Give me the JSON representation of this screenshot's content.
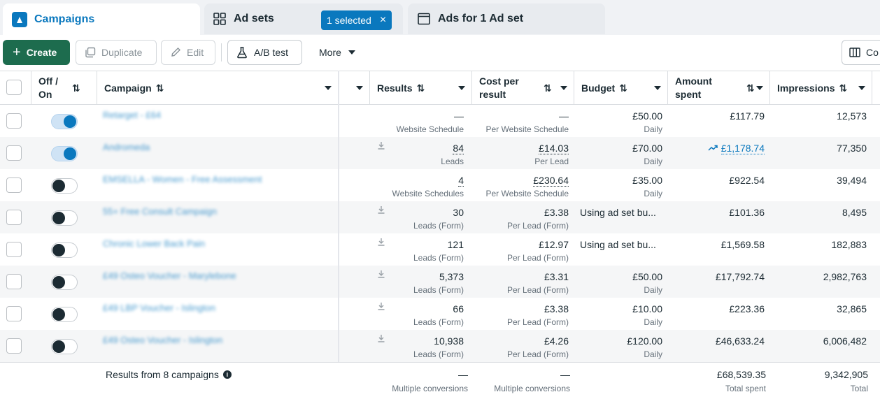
{
  "tabs": {
    "campaigns": "Campaigns",
    "adsets": "Ad sets",
    "adsets_selected": "1 selected",
    "adsets_selected_close": "×",
    "ads": "Ads for 1 Ad set"
  },
  "toolbar": {
    "create": "Create",
    "duplicate": "Duplicate",
    "edit": "Edit",
    "ab_test": "A/B test",
    "more": "More",
    "columns": "Co"
  },
  "columns": {
    "off_on": "Off / On",
    "campaign": "Campaign",
    "results": "Results",
    "cost_per_result": "Cost per result",
    "budget": "Budget",
    "amount_spent": "Amount spent",
    "impressions": "Impressions"
  },
  "rows": [
    {
      "name": "Retarget - £64",
      "on": true,
      "results": "—",
      "results_sub": "Website Schedule",
      "cost": "—",
      "cost_sub": "Per Website Schedule",
      "budget": "£50.00",
      "budget_sub": "Daily",
      "spent": "£117.79",
      "impressions": "12,573"
    },
    {
      "name": "Andromeda",
      "on": true,
      "results": "84",
      "results_sub": "Leads",
      "cost": "£14.03",
      "cost_sub": "Per Lead",
      "budget": "£70.00",
      "budget_sub": "Daily",
      "spent": "£1,178.74",
      "impressions": "77,350"
    },
    {
      "name": "EMSELLA - Women - Free Assessment",
      "on": false,
      "results": "4",
      "results_sub": "Website Schedules",
      "cost": "£230.64",
      "cost_sub": "Per Website Schedule",
      "budget": "£35.00",
      "budget_sub": "Daily",
      "spent": "£922.54",
      "impressions": "39,494"
    },
    {
      "name": "55+ Free Consult Campaign",
      "on": false,
      "results": "30",
      "results_sub": "Leads (Form)",
      "cost": "£3.38",
      "cost_sub": "Per Lead (Form)",
      "budget": "Using ad set bu...",
      "budget_sub": "",
      "spent": "£101.36",
      "impressions": "8,495"
    },
    {
      "name": "Chronic Lower Back Pain",
      "on": false,
      "results": "121",
      "results_sub": "Leads (Form)",
      "cost": "£12.97",
      "cost_sub": "Per Lead (Form)",
      "budget": "Using ad set bu...",
      "budget_sub": "",
      "spent": "£1,569.58",
      "impressions": "182,883"
    },
    {
      "name": "£49 Osteo Voucher - Marylebone",
      "on": false,
      "results": "5,373",
      "results_sub": "Leads (Form)",
      "cost": "£3.31",
      "cost_sub": "Per Lead (Form)",
      "budget": "£50.00",
      "budget_sub": "Daily",
      "spent": "£17,792.74",
      "impressions": "2,982,763"
    },
    {
      "name": "£49 LBP Voucher - Islington",
      "on": false,
      "results": "66",
      "results_sub": "Leads (Form)",
      "cost": "£3.38",
      "cost_sub": "Per Lead (Form)",
      "budget": "£10.00",
      "budget_sub": "Daily",
      "spent": "£223.36",
      "impressions": "32,865"
    },
    {
      "name": "£49 Osteo Voucher - Islington",
      "on": false,
      "results": "10,938",
      "results_sub": "Leads (Form)",
      "cost": "£4.26",
      "cost_sub": "Per Lead (Form)",
      "budget": "£120.00",
      "budget_sub": "Daily",
      "spent": "£46,633.24",
      "impressions": "6,006,482"
    }
  ],
  "footer": {
    "label": "Results from 8 campaigns",
    "results": "—",
    "results_sub": "Multiple conversions",
    "cost": "—",
    "cost_sub": "Multiple conversions",
    "spent": "£68,539.35",
    "spent_sub": "Total spent",
    "impressions": "9,342,905",
    "impressions_sub": "Total"
  },
  "colors": {
    "accent": "#0a78be",
    "create_green": "#1d6c4e"
  }
}
